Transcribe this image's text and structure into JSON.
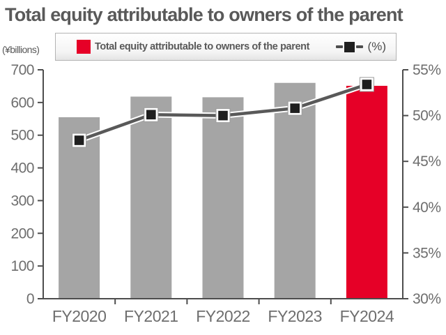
{
  "chart_data": {
    "type": "bar+line",
    "title": "Total equity attributable to owners of the parent",
    "categories": [
      "FY2020",
      "FY2021",
      "FY2022",
      "FY2023",
      "FY2024"
    ],
    "series": [
      {
        "name": "Total equity attributable to owners of the parent",
        "type": "bar",
        "axis": "left",
        "unit": "¥billions",
        "values": [
          555,
          618,
          616,
          660,
          651
        ]
      },
      {
        "name": "(%)",
        "type": "line",
        "axis": "right",
        "unit": "%",
        "values": [
          47.3,
          50.1,
          50.0,
          50.8,
          53.4
        ]
      }
    ],
    "legend": {
      "position": "top",
      "bar_label": "Total equity attributable to owners of the parent",
      "line_label": "(%)"
    },
    "left_axis": {
      "label": "(¥billions)",
      "min": 0,
      "max": 700,
      "tick_step": 100,
      "ticks": [
        0,
        100,
        200,
        300,
        400,
        500,
        600,
        700
      ]
    },
    "right_axis": {
      "min": 30,
      "max": 55,
      "tick_step": 5,
      "tick_labels": [
        "30%",
        "35%",
        "40%",
        "45%",
        "50%",
        "55%"
      ]
    },
    "grid": false,
    "bar_colors": [
      "#a5a5a5",
      "#a5a5a5",
      "#a5a5a5",
      "#a5a5a5",
      "#e60027"
    ],
    "colors": {
      "bar_default": "#a5a5a5",
      "bar_highlight": "#e60027",
      "line": "#595959",
      "line_casing": "#ffffff",
      "marker_fill": "#1f1f1f",
      "marker_border": "#ffffff",
      "axis_line": "#4d4d4d",
      "tick_label": "#6e6e6e",
      "title_text": "#595959"
    }
  }
}
